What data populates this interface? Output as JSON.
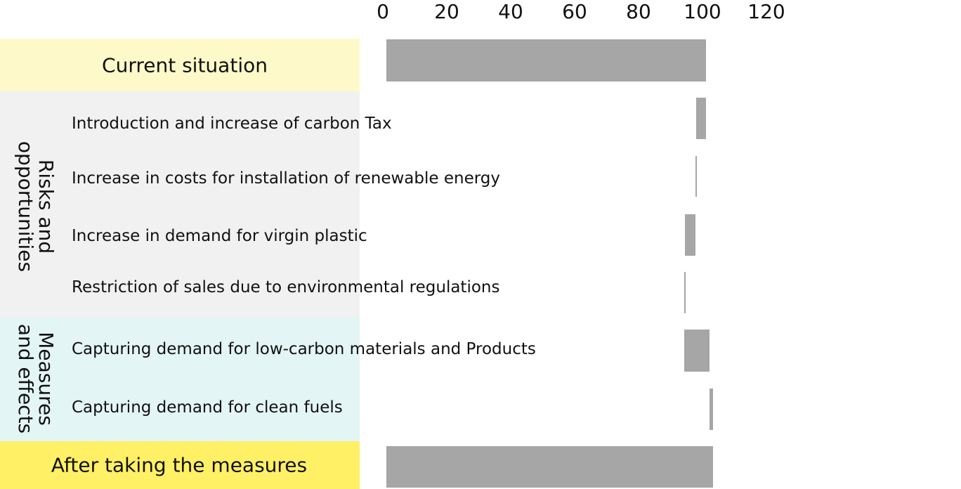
{
  "chart_data": {
    "type": "bar",
    "orientation": "horizontal",
    "subtype": "waterfall",
    "x_ticks": [
      "0",
      "20",
      "40",
      "60",
      "80",
      "100",
      "120"
    ],
    "xlim": [
      0,
      120
    ],
    "grid": false,
    "bar_color": "#a6a6a6",
    "groups": [
      {
        "key": "risks",
        "label_lines": [
          "Risks and",
          "opportunities"
        ],
        "color": "#f1f1f1"
      },
      {
        "key": "measures",
        "label_lines": [
          "Measures",
          "and effects"
        ],
        "color": "#e3f5f4"
      }
    ],
    "rows": [
      {
        "label": "Current situation",
        "kind": "total",
        "start": 0,
        "end": 100,
        "color": "#fef9c8"
      },
      {
        "label": "Introduction and increase of carbon Tax",
        "kind": "step",
        "group": "risks",
        "start": 100,
        "end": 97
      },
      {
        "label": "Increase in costs for installation of renewable energy",
        "kind": "step",
        "group": "risks",
        "start": 97,
        "end": 96.7
      },
      {
        "label": "Increase in demand for virgin plastic",
        "kind": "step",
        "group": "risks",
        "start": 96.7,
        "end": 93.4
      },
      {
        "label": "Restriction of sales due to environmental regulations",
        "kind": "step",
        "group": "risks",
        "start": 93.4,
        "end": 93.1
      },
      {
        "label": "Capturing demand for low-carbon materials and Products",
        "kind": "step",
        "group": "measures",
        "start": 93.1,
        "end": 101
      },
      {
        "label": "Capturing demand for clean fuels",
        "kind": "step",
        "group": "measures",
        "start": 101,
        "end": 102.3
      },
      {
        "label": "After taking the measures",
        "kind": "total",
        "start": 0,
        "end": 102.3,
        "color": "#fff065"
      }
    ]
  }
}
